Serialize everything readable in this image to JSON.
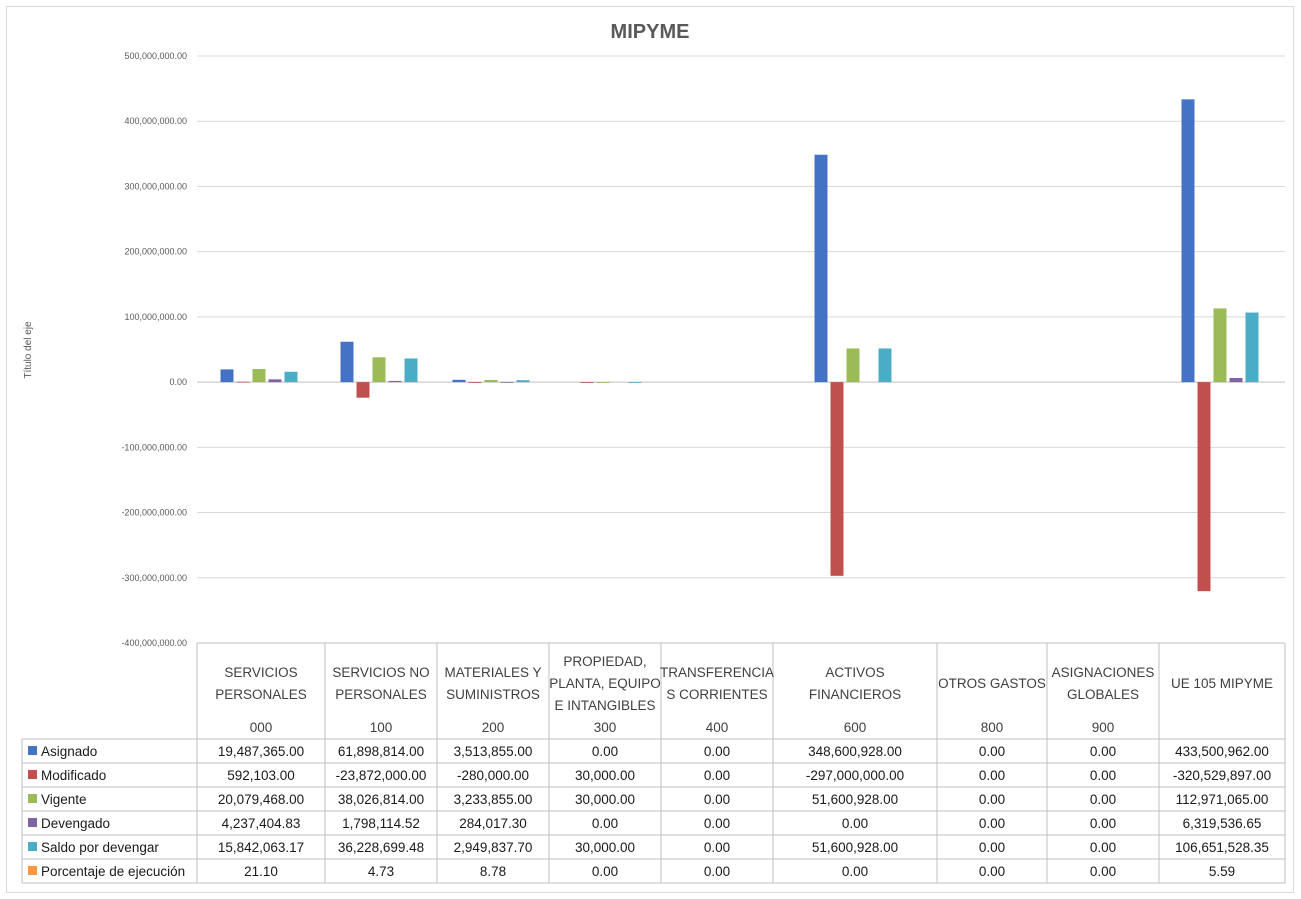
{
  "chart_data": {
    "type": "bar",
    "title": "MIPYME",
    "ylabel": "Título del eje",
    "xlabel": "",
    "ylim": [
      -400000000,
      500000000
    ],
    "yticks": [
      "500,000,000.00",
      "400,000,000.00",
      "300,000,000.00",
      "200,000,000.00",
      "100,000,000.00",
      "0.00",
      "-100,000,000.00",
      "-200,000,000.00",
      "-300,000,000.00",
      "-400,000,000.00"
    ],
    "ytick_values": [
      500000000,
      400000000,
      300000000,
      200000000,
      100000000,
      0,
      -100000000,
      -200000000,
      -300000000,
      -400000000
    ],
    "grid": true,
    "legend": "data-table",
    "categories": [
      {
        "name": [
          "SERVICIOS",
          "PERSONALES"
        ],
        "code": "000"
      },
      {
        "name": [
          "SERVICIOS NO",
          "PERSONALES"
        ],
        "code": "100"
      },
      {
        "name": [
          "MATERIALES Y",
          "SUMINISTROS"
        ],
        "code": "200"
      },
      {
        "name": [
          "PROPIEDAD,",
          "PLANTA, EQUIPO",
          "E INTANGIBLES"
        ],
        "code": "300"
      },
      {
        "name": [
          "TRANSFERENCIA",
          "S CORRIENTES"
        ],
        "code": "400"
      },
      {
        "name": [
          "ACTIVOS",
          "FINANCIEROS"
        ],
        "code": "600"
      },
      {
        "name": [
          "OTROS GASTOS"
        ],
        "code": "800"
      },
      {
        "name": [
          "ASIGNACIONES",
          "GLOBALES"
        ],
        "code": "900"
      },
      {
        "name": [
          "UE 105 MIPYME"
        ],
        "code": ""
      }
    ],
    "series": [
      {
        "name": "Asignado",
        "color": "#4472c4",
        "values": [
          19487365,
          61898814,
          3513855,
          0,
          0,
          348600928,
          0,
          0,
          433500962
        ],
        "labels": [
          "19,487,365.00",
          "61,898,814.00",
          "3,513,855.00",
          "0.00",
          "0.00",
          "348,600,928.00",
          "0.00",
          "0.00",
          "433,500,962.00"
        ]
      },
      {
        "name": "Modificado",
        "color": "#c0504d",
        "values": [
          592103,
          -23872000,
          -280000,
          30000,
          0,
          -297000000,
          0,
          0,
          -320529897
        ],
        "labels": [
          "592,103.00",
          "-23,872,000.00",
          "-280,000.00",
          "30,000.00",
          "0.00",
          "-297,000,000.00",
          "0.00",
          "0.00",
          "-320,529,897.00"
        ]
      },
      {
        "name": "Vigente",
        "color": "#9bbb59",
        "values": [
          20079468,
          38026814,
          3233855,
          30000,
          0,
          51600928,
          0,
          0,
          112971065
        ],
        "labels": [
          "20,079,468.00",
          "38,026,814.00",
          "3,233,855.00",
          "30,000.00",
          "0.00",
          "51,600,928.00",
          "0.00",
          "0.00",
          "112,971,065.00"
        ]
      },
      {
        "name": "Devengado",
        "color": "#8064a2",
        "values": [
          4237404.83,
          1798114.52,
          284017.3,
          0,
          0,
          0,
          0,
          0,
          6319536.65
        ],
        "labels": [
          "4,237,404.83",
          "1,798,114.52",
          "284,017.30",
          "0.00",
          "0.00",
          "0.00",
          "0.00",
          "0.00",
          "6,319,536.65"
        ]
      },
      {
        "name": "Saldo por devengar",
        "color": "#4bacc6",
        "values": [
          15842063.17,
          36228699.48,
          2949837.7,
          30000,
          0,
          51600928,
          0,
          0,
          106651528.35
        ],
        "labels": [
          "15,842,063.17",
          "36,228,699.48",
          "2,949,837.70",
          "30,000.00",
          "0.00",
          "51,600,928.00",
          "0.00",
          "0.00",
          "106,651,528.35"
        ]
      },
      {
        "name": "Porcentaje de ejecución",
        "color": "#f79646",
        "values": [
          21.1,
          4.73,
          8.78,
          0,
          0,
          0,
          0,
          0,
          5.59
        ],
        "labels": [
          "21.10",
          "4.73",
          "8.78",
          "0.00",
          "0.00",
          "0.00",
          "0.00",
          "0.00",
          "5.59"
        ]
      }
    ]
  }
}
